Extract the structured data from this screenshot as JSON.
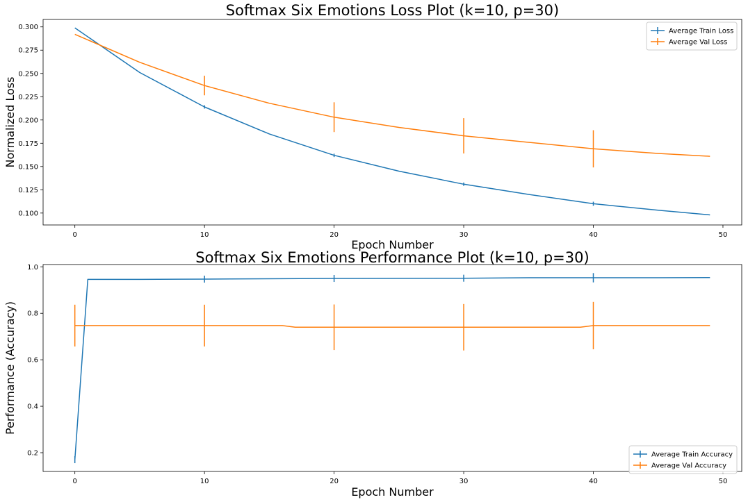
{
  "colors": {
    "train": "#1f77b4",
    "val": "#ff7f0e"
  },
  "chart_data": [
    {
      "type": "line",
      "title": "Softmax Six Emotions Loss Plot (k=10, p=30)",
      "xlabel": "Epoch Number",
      "ylabel": "Normalized Loss",
      "xlim": [
        -2.45,
        51.45
      ],
      "ylim": [
        0.0872,
        0.308
      ],
      "xticks": [
        0,
        10,
        20,
        30,
        40,
        50
      ],
      "yticks": [
        0.1,
        0.125,
        0.15,
        0.175,
        0.2,
        0.225,
        0.25,
        0.275,
        0.3
      ],
      "ytick_labels": [
        "0.100",
        "0.125",
        "0.150",
        "0.175",
        "0.200",
        "0.225",
        "0.250",
        "0.275",
        "0.300"
      ],
      "legend_position": "top-right",
      "series": [
        {
          "name": "Average Train Loss",
          "color_key": "train",
          "x": [
            0,
            5,
            10,
            15,
            20,
            25,
            30,
            35,
            40,
            45,
            49
          ],
          "y": [
            0.299,
            0.251,
            0.214,
            0.185,
            0.162,
            0.145,
            0.131,
            0.12,
            0.11,
            0.103,
            0.098
          ],
          "error_x": [
            10,
            20,
            30,
            40
          ],
          "error_y": [
            0.214,
            0.162,
            0.131,
            0.11
          ],
          "error_size": [
            0.0018,
            0.0018,
            0.0018,
            0.0022
          ]
        },
        {
          "name": "Average Val Loss",
          "color_key": "val",
          "x": [
            0,
            5,
            10,
            15,
            20,
            25,
            30,
            35,
            40,
            45,
            49
          ],
          "y": [
            0.292,
            0.262,
            0.237,
            0.218,
            0.203,
            0.192,
            0.183,
            0.176,
            0.169,
            0.164,
            0.161
          ],
          "error_x": [
            10,
            20,
            30,
            40
          ],
          "error_y": [
            0.237,
            0.203,
            0.183,
            0.169
          ],
          "error_size": [
            0.0105,
            0.016,
            0.019,
            0.02
          ]
        }
      ]
    },
    {
      "type": "line",
      "title": "Softmax Six Emotions Performance Plot (k=10, p=30)",
      "xlabel": "Epoch Number",
      "ylabel": "Performance (Accuracy)",
      "xlim": [
        -2.45,
        51.45
      ],
      "ylim": [
        0.1193,
        1.0098
      ],
      "xticks": [
        0,
        10,
        20,
        30,
        40,
        50
      ],
      "yticks": [
        0.2,
        0.4,
        0.6,
        0.8,
        1.0
      ],
      "ytick_labels": [
        "0.2",
        "0.4",
        "0.6",
        "0.8",
        "1.0"
      ],
      "legend_position": "bottom-right",
      "series": [
        {
          "name": "Average Train Accuracy",
          "color_key": "train",
          "x": [
            0,
            1,
            5,
            10,
            12,
            20,
            30,
            35,
            40,
            45,
            49
          ],
          "y": [
            0.17,
            0.946,
            0.946,
            0.947,
            0.948,
            0.95,
            0.951,
            0.953,
            0.953,
            0.953,
            0.954
          ],
          "error_x": [
            0,
            10,
            20,
            30,
            40
          ],
          "error_y": [
            0.17,
            0.947,
            0.95,
            0.951,
            0.953
          ],
          "error_size": [
            0.015,
            0.015,
            0.015,
            0.015,
            0.02
          ]
        },
        {
          "name": "Average Val Accuracy",
          "color_key": "val",
          "x": [
            0,
            10,
            16,
            17,
            20,
            30,
            39,
            40,
            49
          ],
          "y": [
            0.747,
            0.747,
            0.747,
            0.74,
            0.74,
            0.74,
            0.74,
            0.747,
            0.747
          ],
          "error_x": [
            0,
            10,
            20,
            30,
            40
          ],
          "error_y": [
            0.747,
            0.747,
            0.74,
            0.74,
            0.747
          ],
          "error_size": [
            0.09,
            0.09,
            0.098,
            0.1,
            0.102
          ]
        }
      ]
    }
  ]
}
